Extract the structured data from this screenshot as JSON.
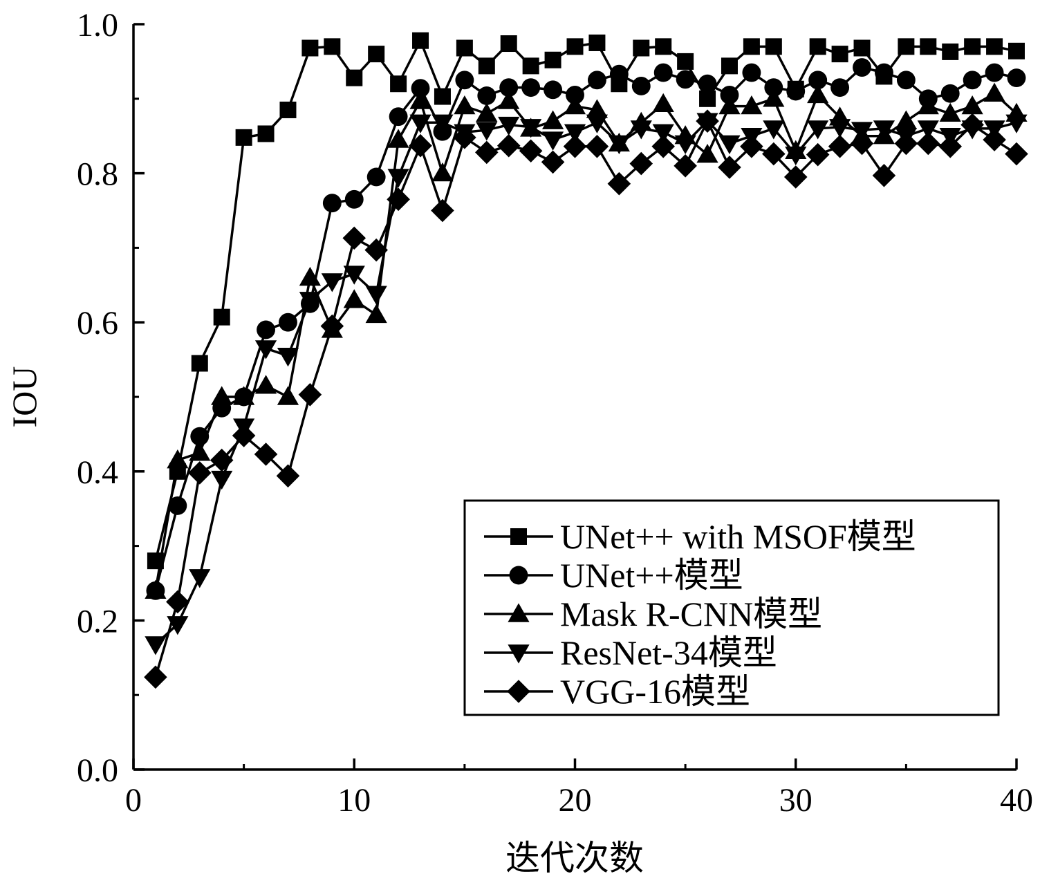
{
  "chart_data": {
    "type": "line",
    "title": "",
    "xlabel": "迭代次数",
    "ylabel": "IOU",
    "xlim": [
      0,
      40
    ],
    "ylim": [
      0.0,
      1.0
    ],
    "xticks": [
      "0",
      "10",
      "20",
      "30",
      "40"
    ],
    "yticks": [
      "0.0",
      "0.2",
      "0.4",
      "0.6",
      "0.8",
      "1.0"
    ],
    "grid": false,
    "legend_position": "bottom-right",
    "x": [
      1,
      2,
      3,
      4,
      5,
      6,
      7,
      8,
      9,
      10,
      11,
      12,
      13,
      14,
      15,
      16,
      17,
      18,
      19,
      20,
      21,
      22,
      23,
      24,
      25,
      26,
      27,
      28,
      29,
      30,
      31,
      32,
      33,
      34,
      35,
      36,
      37,
      38,
      39,
      40
    ],
    "series": [
      {
        "name": "UNet++ with MSOF模型",
        "marker": "square",
        "values": [
          0.28,
          0.4,
          0.545,
          0.607,
          0.848,
          0.853,
          0.885,
          0.968,
          0.97,
          0.928,
          0.96,
          0.92,
          0.978,
          0.903,
          0.968,
          0.944,
          0.974,
          0.944,
          0.952,
          0.97,
          0.975,
          0.92,
          0.968,
          0.97,
          0.95,
          0.9,
          0.944,
          0.97,
          0.97,
          0.913,
          0.97,
          0.96,
          0.968,
          0.93,
          0.97,
          0.97,
          0.963,
          0.97,
          0.97,
          0.964
        ]
      },
      {
        "name": "UNet++模型",
        "marker": "circle",
        "values": [
          0.24,
          0.354,
          0.447,
          0.485,
          0.5,
          0.59,
          0.6,
          0.625,
          0.76,
          0.765,
          0.795,
          0.876,
          0.914,
          0.856,
          0.925,
          0.904,
          0.915,
          0.915,
          0.912,
          0.905,
          0.925,
          0.933,
          0.917,
          0.935,
          0.926,
          0.92,
          0.905,
          0.935,
          0.915,
          0.91,
          0.925,
          0.915,
          0.942,
          0.935,
          0.925,
          0.9,
          0.907,
          0.925,
          0.935,
          0.928
        ]
      },
      {
        "name": "Mask R-CNN模型",
        "marker": "triangle-up",
        "values": [
          0.24,
          0.415,
          0.425,
          0.5,
          0.5,
          0.515,
          0.5,
          0.66,
          0.59,
          0.63,
          0.61,
          0.845,
          0.897,
          0.8,
          0.89,
          0.88,
          0.897,
          0.86,
          0.87,
          0.89,
          0.885,
          0.84,
          0.868,
          0.893,
          0.85,
          0.825,
          0.89,
          0.89,
          0.9,
          0.83,
          0.905,
          0.875,
          0.85,
          0.85,
          0.87,
          0.89,
          0.88,
          0.89,
          0.907,
          0.88
        ]
      },
      {
        "name": "ResNet-34模型",
        "marker": "triangle-down",
        "values": [
          0.168,
          0.195,
          0.258,
          0.39,
          0.46,
          0.565,
          0.555,
          0.63,
          0.655,
          0.665,
          0.638,
          0.795,
          0.868,
          0.868,
          0.855,
          0.858,
          0.865,
          0.862,
          0.845,
          0.855,
          0.868,
          0.84,
          0.86,
          0.855,
          0.84,
          0.87,
          0.84,
          0.85,
          0.86,
          0.825,
          0.86,
          0.862,
          0.858,
          0.86,
          0.85,
          0.86,
          0.85,
          0.86,
          0.86,
          0.868
        ]
      },
      {
        "name": "VGG-16模型",
        "marker": "diamond",
        "values": [
          0.124,
          0.225,
          0.398,
          0.415,
          0.448,
          0.423,
          0.394,
          0.503,
          0.595,
          0.713,
          0.697,
          0.765,
          0.837,
          0.75,
          0.848,
          0.828,
          0.837,
          0.83,
          0.815,
          0.836,
          0.836,
          0.786,
          0.813,
          0.836,
          0.81,
          0.87,
          0.808,
          0.836,
          0.826,
          0.795,
          0.825,
          0.836,
          0.84,
          0.797,
          0.84,
          0.84,
          0.836,
          0.865,
          0.845,
          0.826
        ]
      }
    ]
  }
}
